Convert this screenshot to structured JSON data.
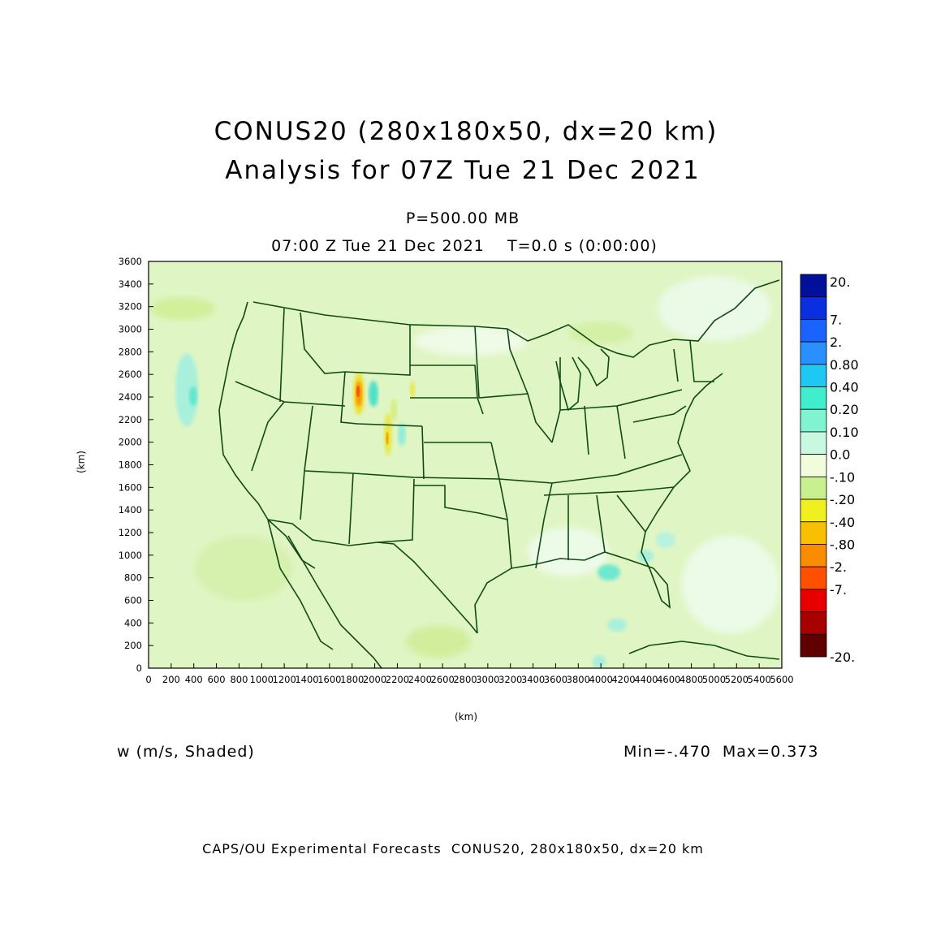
{
  "header": {
    "title_line1": "CONUS20 (280x180x50, dx=20 km)",
    "title_line2": "Analysis for 07Z Tue 21 Dec 2021",
    "level": "P=500.00 MB",
    "time_line": "07:00 Z Tue 21 Dec 2021    T=0.0 s (0:00:00)"
  },
  "axes": {
    "x_label": "(km)",
    "y_label": "(km)",
    "x_ticks": [
      "0",
      "200",
      "400",
      "600",
      "800",
      "1000",
      "1200",
      "1400",
      "1600",
      "1800",
      "2000",
      "2200",
      "2400",
      "2600",
      "2800",
      "3000",
      "3200",
      "3400",
      "3600",
      "3800",
      "4000",
      "4200",
      "4400",
      "4600",
      "4800",
      "5000",
      "5200",
      "5400",
      "5600"
    ],
    "y_ticks": [
      "0",
      "200",
      "400",
      "600",
      "800",
      "1000",
      "1200",
      "1400",
      "1600",
      "1800",
      "2000",
      "2200",
      "2400",
      "2600",
      "2800",
      "3000",
      "3200",
      "3400",
      "3600"
    ]
  },
  "legend": {
    "labels": [
      "20.",
      "7.",
      "2.",
      "0.80",
      "0.40",
      "0.20",
      "0.10",
      "0.0",
      "-.10",
      "-.20",
      "-.40",
      "-.80",
      "-2.",
      "-7.",
      "-20."
    ],
    "colors": [
      "#00109a",
      "#0a2fe0",
      "#1a63ff",
      "#2a90ff",
      "#1ec8f0",
      "#3eeecc",
      "#80f4d0",
      "#c8f8e0",
      "#f0fcdc",
      "#c8f090",
      "#f0f020",
      "#f8c000",
      "#fa8c00",
      "#ff5000",
      "#e80000",
      "#a80000",
      "#600000"
    ]
  },
  "field_info": {
    "variable": "w (m/s, Shaded)",
    "minmax": "Min=-.470  Max=0.373"
  },
  "footer": "CAPS/OU Experimental Forecasts  CONUS20, 280x180x50, dx=20 km",
  "map_colors": {
    "background": "#e0f5c4",
    "boundary": "#0f4a14"
  }
}
